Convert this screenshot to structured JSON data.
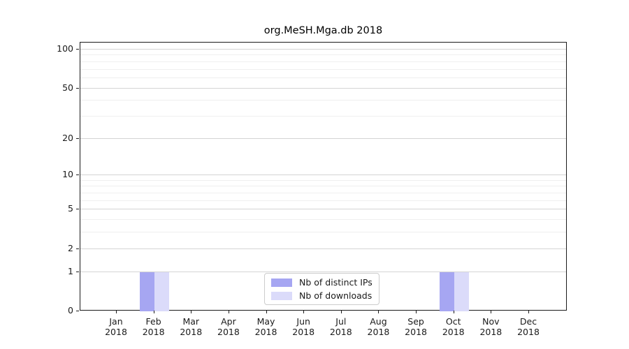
{
  "chart_data": {
    "type": "bar",
    "title": "org.MeSH.Mga.db 2018",
    "categories": [
      "Jan 2018",
      "Feb 2018",
      "Mar 2018",
      "Apr 2018",
      "May 2018",
      "Jun 2018",
      "Jul 2018",
      "Aug 2018",
      "Sep 2018",
      "Oct 2018",
      "Nov 2018",
      "Dec 2018"
    ],
    "series": [
      {
        "name": "Nb of distinct IPs",
        "color": "#a6a6f2",
        "values": [
          0,
          1,
          0,
          0,
          0,
          0,
          0,
          0,
          0,
          1,
          0,
          0
        ]
      },
      {
        "name": "Nb of downloads",
        "color": "#dbdbfa",
        "values": [
          0,
          1,
          0,
          0,
          0,
          0,
          0,
          0,
          0,
          1,
          0,
          0
        ]
      }
    ],
    "yscale": "log10(value+1)",
    "yticks": [
      0,
      1,
      2,
      5,
      10,
      20,
      50,
      100
    ],
    "minor_gridlines": [
      3,
      4,
      6,
      7,
      8,
      9,
      30,
      40,
      60,
      70,
      80,
      90
    ],
    "ylim": [
      0,
      113
    ],
    "grid": "on",
    "legend_position": "inside-bottom-center"
  },
  "colors": {
    "axis": "#1a1a1a",
    "major_grid": "#d4d4d4",
    "minor_grid": "#efefef",
    "legend_border": "#cccccc"
  }
}
